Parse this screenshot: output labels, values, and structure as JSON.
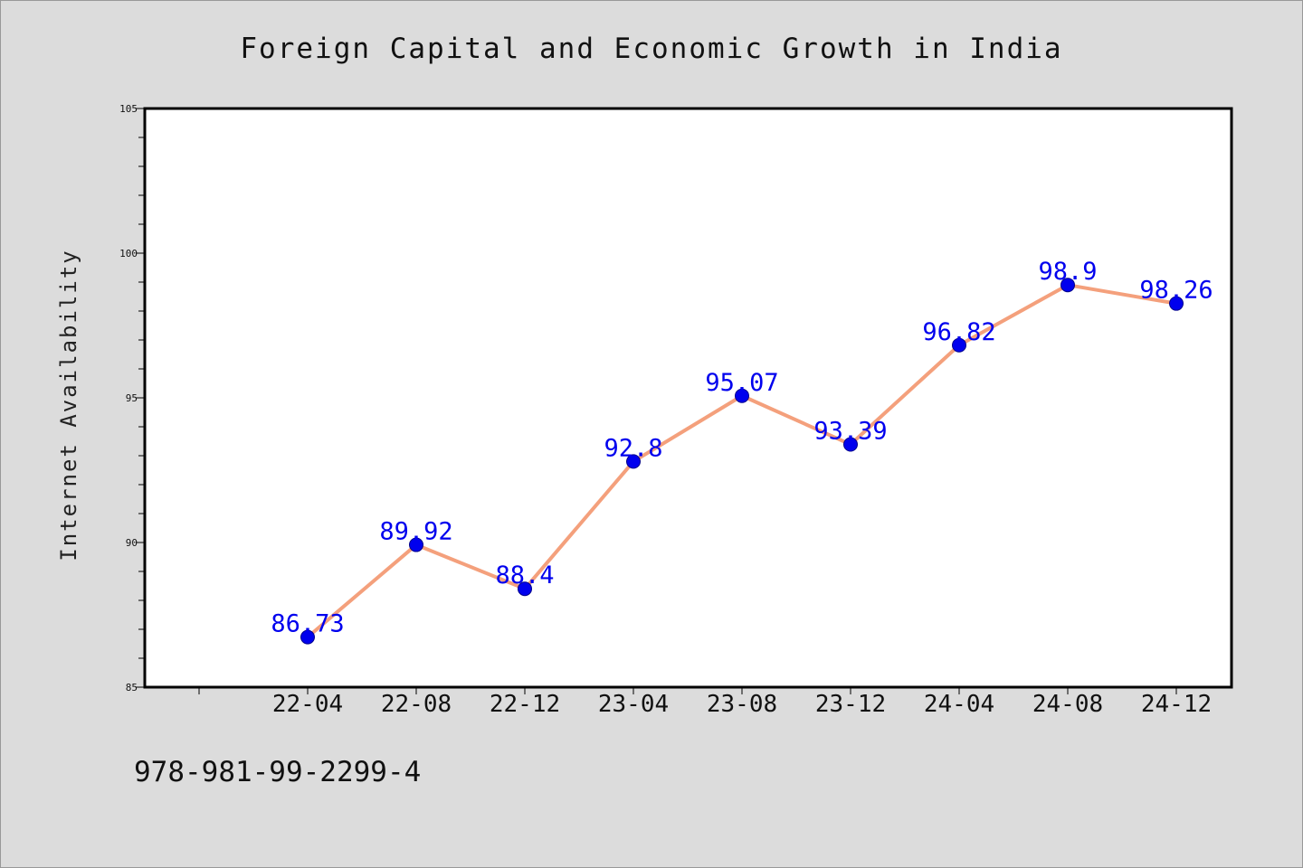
{
  "chart_data": {
    "type": "line",
    "title": "Foreign Capital and Economic Growth in India",
    "xlabel": "",
    "ylabel": "Internet Availability",
    "categories": [
      "22-04",
      "22-08",
      "22-12",
      "23-04",
      "23-08",
      "23-12",
      "24-04",
      "24-08",
      "24-12"
    ],
    "values": [
      86.73,
      89.92,
      88.4,
      92.8,
      95.07,
      93.39,
      96.82,
      98.9,
      98.26
    ],
    "data_labels": [
      "86.73",
      "89.92",
      "88.4",
      "92.8",
      "95.07",
      "93.39",
      "96.82",
      "98.9",
      "98.26"
    ],
    "ylim": [
      85,
      105
    ],
    "yticks": [
      85,
      90,
      95,
      100,
      105
    ],
    "grid": false,
    "legend": "none",
    "colors": {
      "line": "#f4a07c",
      "marker": "#0000ee",
      "label": "#0000ee",
      "background": "#dcdcdc",
      "plot_background": "#ffffff"
    }
  },
  "footnote": "978-981-99-2299-4"
}
